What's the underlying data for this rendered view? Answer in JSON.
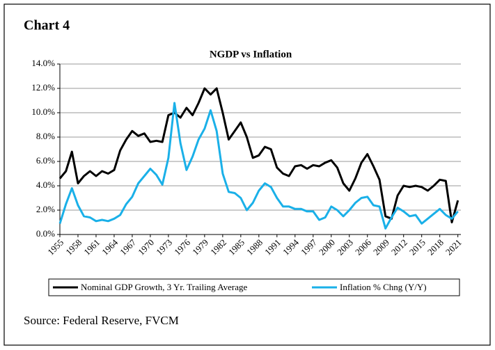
{
  "chart_data": {
    "type": "line",
    "chart_label": "Chart 4",
    "title": "NGDP vs Inflation",
    "source": "Source: Federal Reserve, FVCM",
    "x": [
      1955,
      1956,
      1957,
      1958,
      1959,
      1960,
      1961,
      1962,
      1963,
      1964,
      1965,
      1966,
      1967,
      1968,
      1969,
      1970,
      1971,
      1972,
      1973,
      1974,
      1975,
      1976,
      1977,
      1978,
      1979,
      1980,
      1981,
      1982,
      1983,
      1984,
      1985,
      1986,
      1987,
      1988,
      1989,
      1990,
      1991,
      1992,
      1993,
      1994,
      1995,
      1996,
      1997,
      1998,
      1999,
      2000,
      2001,
      2002,
      2003,
      2004,
      2005,
      2006,
      2007,
      2008,
      2009,
      2010,
      2011,
      2012,
      2013,
      2014,
      2015,
      2016,
      2017,
      2018,
      2019,
      2020,
      2021
    ],
    "series": [
      {
        "name": "Nominal GDP Growth, 3 Yr. Trailing Average",
        "color": "#000000",
        "values": [
          4.6,
          5.2,
          6.8,
          4.2,
          4.8,
          5.2,
          4.8,
          5.2,
          5.0,
          5.3,
          6.9,
          7.8,
          8.5,
          8.1,
          8.3,
          7.6,
          7.7,
          7.6,
          9.8,
          10.0,
          9.6,
          10.4,
          9.8,
          10.8,
          12.0,
          11.5,
          12.0,
          10.0,
          7.8,
          8.5,
          9.2,
          8.0,
          6.3,
          6.5,
          7.2,
          7.0,
          5.5,
          5.0,
          4.8,
          5.6,
          5.7,
          5.4,
          5.7,
          5.6,
          5.9,
          6.1,
          5.5,
          4.2,
          3.6,
          4.6,
          5.9,
          6.6,
          5.6,
          4.5,
          1.5,
          1.3,
          3.2,
          4.0,
          3.9,
          4.0,
          3.9,
          3.6,
          4.0,
          4.5,
          4.4,
          1.0,
          2.8
        ]
      },
      {
        "name": "Inflation % Chng (Y/Y)",
        "color": "#1ab0e8",
        "values": [
          0.9,
          2.5,
          3.8,
          2.4,
          1.5,
          1.4,
          1.1,
          1.2,
          1.1,
          1.3,
          1.6,
          2.5,
          3.1,
          4.2,
          4.8,
          5.4,
          4.9,
          4.1,
          6.3,
          10.8,
          7.5,
          5.3,
          6.4,
          7.8,
          8.7,
          10.2,
          8.5,
          5.0,
          3.5,
          3.4,
          3.0,
          2.0,
          2.6,
          3.6,
          4.2,
          3.9,
          3.0,
          2.3,
          2.3,
          2.1,
          2.1,
          1.9,
          1.9,
          1.2,
          1.4,
          2.3,
          2.0,
          1.5,
          2.0,
          2.6,
          3.0,
          3.1,
          2.4,
          2.3,
          0.5,
          1.4,
          2.2,
          1.9,
          1.5,
          1.6,
          0.9,
          1.3,
          1.7,
          2.1,
          1.6,
          1.3,
          1.9
        ]
      }
    ],
    "xlim": [
      1955,
      2021.5
    ],
    "xticks": [
      1955,
      1958,
      1961,
      1964,
      1967,
      1970,
      1973,
      1976,
      1979,
      1982,
      1985,
      1988,
      1991,
      1994,
      1997,
      2000,
      2003,
      2006,
      2009,
      2012,
      2015,
      2018,
      2021
    ],
    "ylim": [
      0,
      14
    ],
    "yticks": [
      {
        "value": 0,
        "label": "0.0%"
      },
      {
        "value": 2,
        "label": "2.0%"
      },
      {
        "value": 4,
        "label": "4.0%"
      },
      {
        "value": 6,
        "label": "6.0%"
      },
      {
        "value": 8,
        "label": "8.0%"
      },
      {
        "value": 10,
        "label": "10.0%"
      },
      {
        "value": 12,
        "label": "12.0%"
      },
      {
        "value": 14,
        "label": "14.0%"
      }
    ],
    "grid": true
  }
}
